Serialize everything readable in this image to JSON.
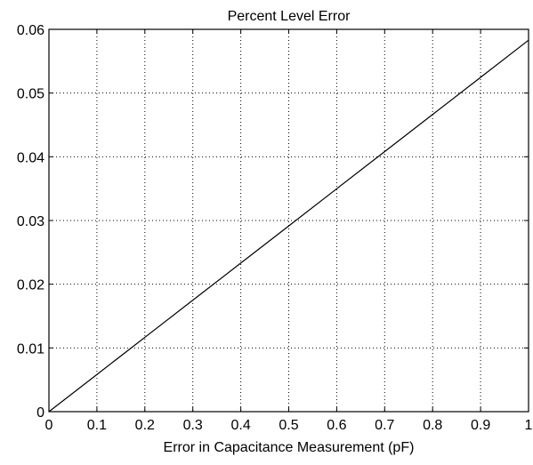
{
  "chart_data": {
    "type": "line",
    "title": "Percent Level Error",
    "xlabel": "Error in Capacitance Measurement (pF)",
    "ylabel": "",
    "xlim": [
      0,
      1
    ],
    "ylim": [
      0,
      0.06
    ],
    "x_ticks": [
      0,
      0.1,
      0.2,
      0.3,
      0.4,
      0.5,
      0.6,
      0.7,
      0.8,
      0.9,
      1
    ],
    "x_tick_labels": [
      "0",
      "0.1",
      "0.2",
      "0.3",
      "0.4",
      "0.5",
      "0.6",
      "0.7",
      "0.8",
      "0.9",
      "1"
    ],
    "y_ticks": [
      0,
      0.01,
      0.02,
      0.03,
      0.04,
      0.05,
      0.06
    ],
    "y_tick_labels": [
      "0",
      "0.01",
      "0.02",
      "0.03",
      "0.04",
      "0.05",
      "0.06"
    ],
    "grid": true,
    "series": [
      {
        "color": "#000000",
        "x": [
          0,
          0.1,
          0.2,
          0.3,
          0.4,
          0.5,
          0.6,
          0.7,
          0.8,
          0.9,
          1.0
        ],
        "y": [
          0,
          0.00583,
          0.01166,
          0.01749,
          0.02332,
          0.02915,
          0.03498,
          0.04081,
          0.04664,
          0.05247,
          0.0583
        ]
      }
    ]
  }
}
